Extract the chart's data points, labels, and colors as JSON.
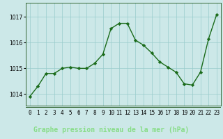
{
  "hours": [
    0,
    1,
    2,
    3,
    4,
    5,
    6,
    7,
    8,
    9,
    10,
    11,
    12,
    13,
    14,
    15,
    16,
    17,
    18,
    19,
    20,
    21,
    22,
    23
  ],
  "pressure": [
    1013.9,
    1014.3,
    1014.8,
    1014.8,
    1015.0,
    1015.05,
    1015.0,
    1015.0,
    1015.2,
    1015.55,
    1016.55,
    1016.75,
    1016.75,
    1016.1,
    1015.9,
    1015.6,
    1015.25,
    1015.05,
    1014.85,
    1014.4,
    1014.35,
    1014.85,
    1016.15,
    1017.1
  ],
  "line_color": "#1a6b1a",
  "marker": "D",
  "marker_size": 2.2,
  "linewidth": 1.0,
  "bg_color": "#cce8e8",
  "plot_bg_color": "#cce8e8",
  "grid_color": "#99cccc",
  "ylabel_ticks": [
    1014,
    1015,
    1016,
    1017
  ],
  "ylim": [
    1013.55,
    1017.55
  ],
  "xlim": [
    -0.5,
    23.5
  ],
  "xtick_labels": [
    "0",
    "1",
    "2",
    "3",
    "4",
    "5",
    "6",
    "7",
    "8",
    "9",
    "10",
    "11",
    "12",
    "13",
    "14",
    "15",
    "16",
    "17",
    "18",
    "19",
    "20",
    "21",
    "22",
    "23"
  ],
  "tick_fontsize": 5.5,
  "ytick_fontsize": 5.5,
  "spine_color": "#336633",
  "bottom_bar_color": "#1a5c1a",
  "bottom_bar_text_color": "#88dd88",
  "xlabel": "Graphe pression niveau de la mer (hPa)",
  "xlabel_fontsize": 7.0
}
